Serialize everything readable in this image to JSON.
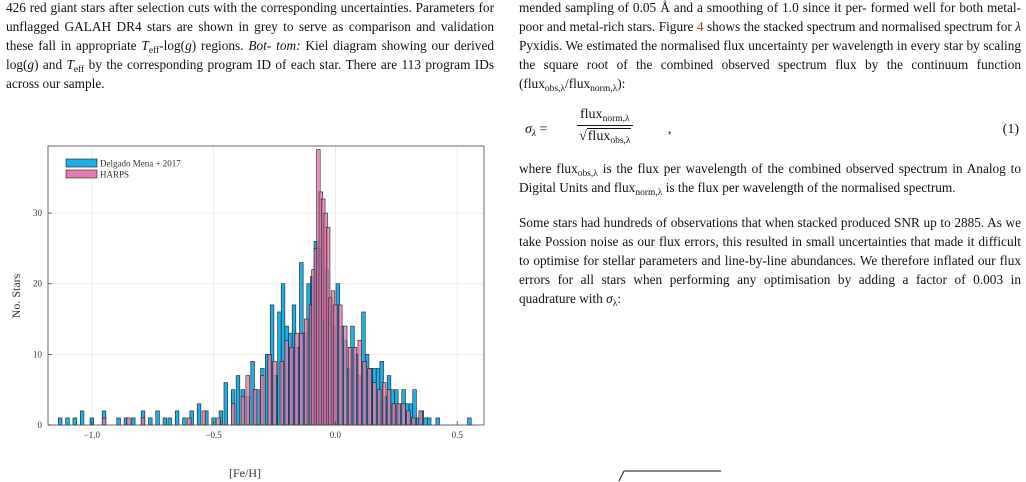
{
  "left_caption": {
    "line1": "426 red giant stars after selection cuts with the corresponding uncertainties.",
    "line2": "Parameters for unflagged GALAH DR4 stars are shown in grey to serve as",
    "line3_a": "comparison and validation these fall in appropriate ",
    "teff_symbol": "T",
    "teff_sub": "eff",
    "line3_b": "-log(",
    "g_symbol": "g",
    "line3_c": ") regions. ",
    "bot_italic": "Bot-",
    "line4_a": "tom:",
    "line4_b": " Kiel diagram showing our derived log(",
    "line4_c": ") and ",
    "line4_d": " by the corresponding",
    "line5": "program ID of each star. There are 113 program IDs across our sample."
  },
  "right_text": {
    "p1_line1": "mended sampling of 0.05 Å and a smoothing of 1.0 since it per-",
    "p1_line2_a": "formed well for both metal-poor and metal-rich stars. Figure ",
    "figure_ref": "4",
    "p1_line2_b": " shows",
    "p1_line3_a": "the stacked spectrum and normalised spectrum for ",
    "lambda": "λ",
    "p1_line3_b": " Pyxidis. We",
    "p1_line4": "estimated the normalised flux uncertainty per wavelength in every",
    "p1_line5": "star by scaling the square root of the combined observed spectrum",
    "p1_line6_a": "flux by the continuum function (flux",
    "obs_sub": "obs,λ",
    "p1_line6_b": "/flux",
    "norm_sub": "norm,λ",
    "p1_line6_c": "):",
    "eq_sigma": "σ",
    "eq_equals": "=",
    "eq_flux": "flux",
    "eq_comma": ",",
    "eq_number": "(1)",
    "p2_a": "where flux",
    "p2_b": " is the flux per wavelength of the combined observed spectrum in Analog to Digital Units and flux",
    "p2_c": " is the flux per wavelength of the normalised spectrum.",
    "p3_a": "Some stars had hundreds of observations that when stacked produced SNR up to 2885. As we take Possion noise as our flux errors, this resulted in small uncertainties that made it difficult to optimise for stellar parameters and line-by-line abundances. We therefore inflated our flux errors for all stars when performing any optimisation by adding a factor of 0.003 in quadrature with ",
    "p3_b": ":"
  },
  "chart_data": {
    "type": "bar",
    "xlabel": "[Fe/H]",
    "ylabel": "No. Stars",
    "xlim": [
      -1.18,
      0.61
    ],
    "ylim": [
      0,
      39.5
    ],
    "xticks": [
      -1.0,
      -0.5,
      0.0,
      0.5
    ],
    "xtick_labels": [
      "−1.0",
      "−0.5",
      "0.0",
      "0.5"
    ],
    "yticks": [
      0,
      10,
      20,
      30
    ],
    "yticks_labels": [
      "0",
      "10",
      "20",
      "30"
    ],
    "grid": true,
    "legend_position": "top-left",
    "bin_width": 0.015,
    "colors": {
      "delgado": "#1eb0e6",
      "harps": "#e67ab0",
      "overlap": "#a05090",
      "edge": "#1a1a1a"
    },
    "series": [
      {
        "name": "Delgado Mena + 2017",
        "bins": [
          [
            -1.13,
            1
          ],
          [
            -1.1,
            1
          ],
          [
            -1.07,
            1
          ],
          [
            -1.04,
            2
          ],
          [
            -1.0,
            1
          ],
          [
            -0.95,
            2
          ],
          [
            -0.89,
            1
          ],
          [
            -0.86,
            1
          ],
          [
            -0.83,
            1
          ],
          [
            -0.79,
            2
          ],
          [
            -0.76,
            1
          ],
          [
            -0.73,
            2
          ],
          [
            -0.7,
            1
          ],
          [
            -0.68,
            1
          ],
          [
            -0.65,
            2
          ],
          [
            -0.62,
            1
          ],
          [
            -0.59,
            2
          ],
          [
            -0.56,
            3
          ],
          [
            -0.53,
            2
          ],
          [
            -0.5,
            1
          ],
          [
            -0.47,
            2
          ],
          [
            -0.45,
            6
          ],
          [
            -0.42,
            5
          ],
          [
            -0.4,
            7
          ],
          [
            -0.38,
            5
          ],
          [
            -0.36,
            4
          ],
          [
            -0.34,
            9
          ],
          [
            -0.32,
            5
          ],
          [
            -0.3,
            8
          ],
          [
            -0.28,
            10
          ],
          [
            -0.26,
            17
          ],
          [
            -0.245,
            7
          ],
          [
            -0.23,
            16
          ],
          [
            -0.215,
            20
          ],
          [
            -0.2,
            14
          ],
          [
            -0.185,
            13
          ],
          [
            -0.17,
            17
          ],
          [
            -0.155,
            11
          ],
          [
            -0.14,
            23
          ],
          [
            -0.125,
            13
          ],
          [
            -0.11,
            20
          ],
          [
            -0.095,
            21
          ],
          [
            -0.08,
            26
          ],
          [
            -0.065,
            25
          ],
          [
            -0.05,
            15
          ],
          [
            -0.035,
            22
          ],
          [
            -0.02,
            17
          ],
          [
            -0.005,
            14
          ],
          [
            0.01,
            20
          ],
          [
            0.025,
            14
          ],
          [
            0.04,
            12
          ],
          [
            0.055,
            8
          ],
          [
            0.07,
            14
          ],
          [
            0.085,
            10
          ],
          [
            0.1,
            7
          ],
          [
            0.115,
            16
          ],
          [
            0.13,
            10
          ],
          [
            0.145,
            8
          ],
          [
            0.16,
            8
          ],
          [
            0.175,
            8
          ],
          [
            0.19,
            9
          ],
          [
            0.205,
            4
          ],
          [
            0.22,
            7
          ],
          [
            0.235,
            5
          ],
          [
            0.25,
            5
          ],
          [
            0.265,
            3
          ],
          [
            0.28,
            5
          ],
          [
            0.295,
            3
          ],
          [
            0.31,
            3
          ],
          [
            0.325,
            5
          ],
          [
            0.34,
            1
          ],
          [
            0.355,
            2
          ],
          [
            0.37,
            1
          ],
          [
            0.385,
            1
          ],
          [
            0.42,
            1
          ],
          [
            0.55,
            1
          ]
        ]
      },
      {
        "name": "HARPS",
        "bins": [
          [
            -0.95,
            1
          ],
          [
            -0.85,
            1
          ],
          [
            -0.79,
            1
          ],
          [
            -0.6,
            1
          ],
          [
            -0.54,
            2
          ],
          [
            -0.48,
            1
          ],
          [
            -0.42,
            3
          ],
          [
            -0.38,
            4
          ],
          [
            -0.36,
            7
          ],
          [
            -0.33,
            5
          ],
          [
            -0.3,
            7
          ],
          [
            -0.27,
            10
          ],
          [
            -0.25,
            9
          ],
          [
            -0.22,
            9
          ],
          [
            -0.2,
            12
          ],
          [
            -0.18,
            11
          ],
          [
            -0.16,
            13
          ],
          [
            -0.14,
            13
          ],
          [
            -0.12,
            15
          ],
          [
            -0.1,
            17
          ],
          [
            -0.09,
            22
          ],
          [
            -0.08,
            25
          ],
          [
            -0.07,
            39
          ],
          [
            -0.06,
            33
          ],
          [
            -0.05,
            32
          ],
          [
            -0.04,
            30
          ],
          [
            -0.03,
            28
          ],
          [
            -0.02,
            18
          ],
          [
            -0.01,
            19
          ],
          [
            0.0,
            17
          ],
          [
            0.02,
            17
          ],
          [
            0.04,
            14
          ],
          [
            0.06,
            11
          ],
          [
            0.08,
            11
          ],
          [
            0.1,
            12
          ],
          [
            0.12,
            9
          ],
          [
            0.14,
            8
          ],
          [
            0.16,
            6
          ],
          [
            0.18,
            5
          ],
          [
            0.2,
            6
          ],
          [
            0.22,
            5
          ],
          [
            0.24,
            3
          ],
          [
            0.26,
            3
          ],
          [
            0.28,
            3
          ],
          [
            0.3,
            2
          ],
          [
            0.32,
            1
          ],
          [
            0.35,
            2
          ]
        ]
      }
    ]
  }
}
